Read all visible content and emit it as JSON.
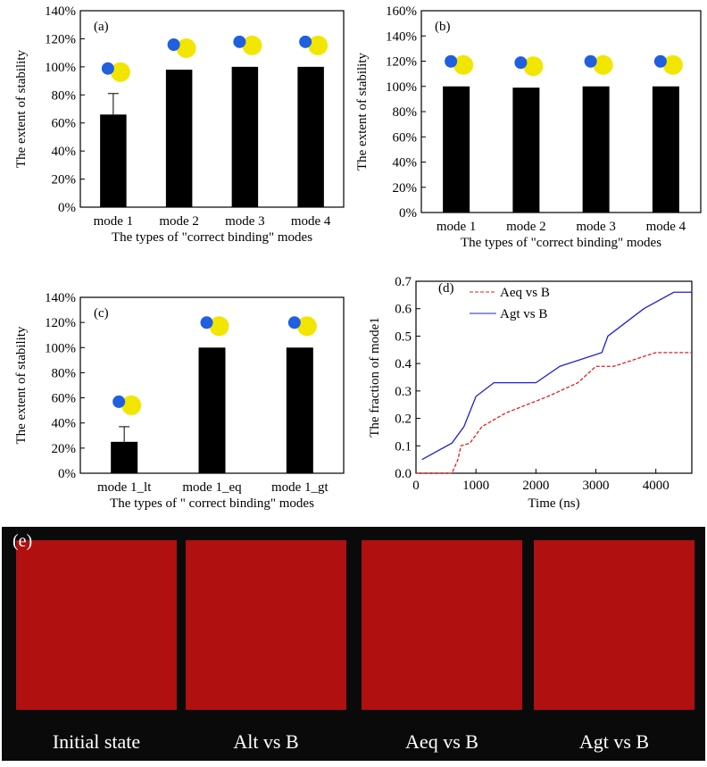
{
  "chart_data": [
    {
      "type": "bar",
      "panel_label": "(a)",
      "ylabel": "The extent of stability",
      "xlabel": "The types of  \"correct binding\" modes",
      "categories": [
        "mode 1",
        "mode 2",
        "mode 3",
        "mode 4"
      ],
      "values": [
        66,
        98,
        100,
        100
      ],
      "errors": [
        15,
        0,
        0,
        0
      ],
      "color": "#000000",
      "ylim": [
        0,
        140
      ],
      "yticks": [
        {
          "value": 0,
          "label": "0%"
        },
        {
          "value": 20,
          "label": "20%"
        },
        {
          "value": 40,
          "label": "40%"
        },
        {
          "value": 60,
          "label": "60%"
        },
        {
          "value": 80,
          "label": "80%"
        },
        {
          "value": 100,
          "label": "100%"
        },
        {
          "value": 120,
          "label": "120%"
        },
        {
          "value": 140,
          "label": "140%"
        }
      ]
    },
    {
      "type": "bar",
      "panel_label": "(b)",
      "ylabel": "The extent of stability",
      "xlabel": "The types of  \"correct binding\" modes",
      "categories": [
        "mode 1",
        "mode 2",
        "mode 3",
        "mode 4"
      ],
      "values": [
        100,
        99,
        100,
        100
      ],
      "errors": [
        0,
        0,
        0,
        0
      ],
      "color": "#000000",
      "ylim": [
        0,
        160
      ],
      "yticks": [
        {
          "value": 0,
          "label": "0%"
        },
        {
          "value": 20,
          "label": "20%"
        },
        {
          "value": 40,
          "label": "40%"
        },
        {
          "value": 60,
          "label": "60%"
        },
        {
          "value": 80,
          "label": "80%"
        },
        {
          "value": 100,
          "label": "100%"
        },
        {
          "value": 120,
          "label": "120%"
        },
        {
          "value": 140,
          "label": "140%"
        },
        {
          "value": 160,
          "label": "160%"
        }
      ]
    },
    {
      "type": "bar",
      "panel_label": "(c)",
      "ylabel": "The extent of stability",
      "xlabel": "The types of \" correct binding\" modes",
      "categories": [
        "mode 1_lt",
        "mode 1_eq",
        "mode 1_gt"
      ],
      "values": [
        25,
        100,
        100
      ],
      "errors": [
        12,
        0,
        0
      ],
      "color": "#000000",
      "ylim": [
        0,
        140
      ],
      "yticks": [
        {
          "value": 0,
          "label": "0%"
        },
        {
          "value": 20,
          "label": "20%"
        },
        {
          "value": 40,
          "label": "40%"
        },
        {
          "value": 60,
          "label": "60%"
        },
        {
          "value": 80,
          "label": "80%"
        },
        {
          "value": 100,
          "label": "100%"
        },
        {
          "value": 120,
          "label": "120%"
        },
        {
          "value": 140,
          "label": "140%"
        }
      ]
    },
    {
      "type": "line",
      "panel_label": "(d)",
      "ylabel": "The fraction of mode1",
      "xlabel": "Time (ns)",
      "legend": "upper-left",
      "series": [
        {
          "name": "Aeq vs B",
          "color": "#e02020",
          "dash": true,
          "x": [
            0,
            600,
            700,
            750,
            900,
            1100,
            1500,
            2200,
            2700,
            3000,
            3300,
            4000,
            4600
          ],
          "values": [
            0,
            0,
            0.05,
            0.1,
            0.11,
            0.17,
            0.22,
            0.28,
            0.33,
            0.39,
            0.39,
            0.44,
            0.44
          ]
        },
        {
          "name": "Agt vs B",
          "color": "#2020d0",
          "dash": false,
          "x": [
            100,
            600,
            800,
            1000,
            1300,
            2000,
            2400,
            3100,
            3200,
            3500,
            3800,
            4300,
            4600
          ],
          "values": [
            0.05,
            0.11,
            0.17,
            0.28,
            0.33,
            0.33,
            0.39,
            0.44,
            0.5,
            0.55,
            0.6,
            0.66,
            0.66
          ]
        }
      ],
      "xlim": [
        0,
        4600
      ],
      "xticks": [
        0,
        1000,
        2000,
        3000,
        4000
      ],
      "ylim": [
        0,
        0.7
      ],
      "yticks": [
        {
          "value": 0,
          "label": "0.0"
        },
        0.1,
        0.2,
        0.3,
        0.4,
        0.5,
        0.6,
        0.7
      ]
    }
  ],
  "image_panel": {
    "label": "(e)",
    "captions": [
      "Initial state",
      "Alt vs B",
      "Aeq vs B",
      "Agt vs B"
    ]
  }
}
